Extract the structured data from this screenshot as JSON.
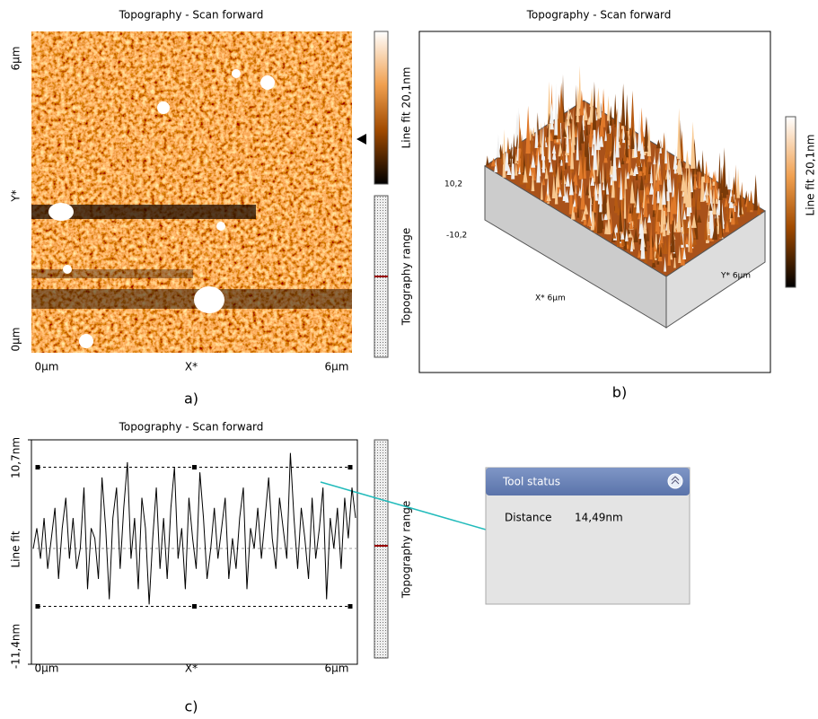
{
  "panels": {
    "a": {
      "title": "Topography - Scan forward",
      "y_labels": [
        "6µm",
        "Y*",
        "0µm"
      ],
      "x_labels": [
        "0µm",
        "X*",
        "6µm"
      ],
      "colorbar_label": "Line fit 20,1nm",
      "range_label": "Topography range",
      "caption": "a)"
    },
    "b": {
      "title": "Topography - Scan forward",
      "z_labels": [
        "10,2",
        "-10,2"
      ],
      "x_label": "X* 6µm",
      "y_label": "Y* 6µm",
      "colorbar_label": "Line fit 20,1nm",
      "caption": "b)"
    },
    "c": {
      "type": "line",
      "title": "Topography - Scan forward",
      "yticks": [
        {
          "value": 10.7,
          "label": "10,7nm"
        },
        {
          "value": -11.4,
          "label": "-11,4nm"
        }
      ],
      "ylim": [
        -11.4,
        10.7
      ],
      "y_label": "Line fit",
      "x_labels": [
        "0µm",
        "X*",
        "6µm"
      ],
      "cursor_lines": [
        8.0,
        -5.7
      ],
      "values": [
        0,
        2,
        -1,
        3,
        -2,
        1,
        4,
        -3,
        2,
        5,
        -1,
        3,
        -2,
        0,
        6,
        -4,
        2,
        1,
        -3,
        7,
        2,
        -5,
        3,
        6,
        -2,
        4,
        8.5,
        -1,
        3,
        -4,
        5,
        2,
        -5.5,
        1,
        6,
        -2,
        3,
        -3,
        4,
        8,
        -1,
        2,
        -4,
        5,
        1,
        -2,
        7.5,
        3,
        -3,
        0,
        4,
        -1,
        2,
        5,
        -3,
        1,
        -2,
        3,
        6,
        -4,
        2,
        0,
        4,
        -1,
        3,
        7,
        1,
        -2,
        5,
        2,
        -1,
        9.4,
        3,
        -2,
        4,
        1,
        -3,
        5,
        -1,
        2,
        6,
        -5,
        3,
        0,
        4,
        -2,
        5,
        1,
        6,
        3
      ],
      "color": "#000000",
      "range_label": "Topography range",
      "caption": "c)"
    }
  },
  "tool_status": {
    "title": "Tool status",
    "label": "Distance",
    "value": "14,49nm"
  }
}
